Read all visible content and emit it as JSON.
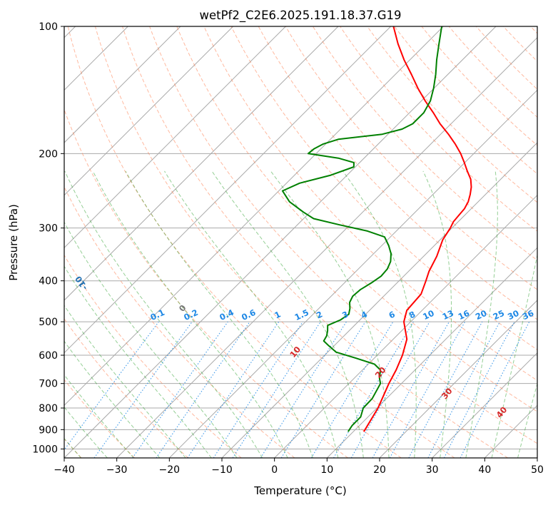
{
  "chart_data": {
    "type": "line",
    "diagram": "skew-t log-p",
    "title": "wetPf2_C2E6.2025.191.18.37.G19",
    "xlabel": "Temperature (°C)",
    "ylabel": "Pressure (hPa)",
    "xlim": [
      -40,
      50
    ],
    "ylim": [
      1050,
      100
    ],
    "y_scale": "log",
    "grid": true,
    "x_ticks": [
      -40,
      -30,
      -20,
      -10,
      0,
      10,
      20,
      30,
      40,
      50
    ],
    "x_tick_labels": [
      "−40",
      "−30",
      "−20",
      "−10",
      "0",
      "10",
      "20",
      "30",
      "40",
      "50"
    ],
    "y_ticks": [
      1000,
      900,
      800,
      700,
      600,
      500,
      400,
      300,
      200,
      100
    ],
    "y_tick_labels": [
      "1000",
      "900",
      "800",
      "700",
      "600",
      "500",
      "400",
      "300",
      "200",
      "100"
    ],
    "series": [
      {
        "color": "#ff0000",
        "pressure": [
          910,
          800,
          700,
          650,
          600,
          550,
          500,
          470,
          430,
          400,
          380,
          350,
          320,
          300,
          290,
          280,
          270,
          260,
          250,
          240,
          230,
          220,
          210,
          200,
          190,
          180,
          170,
          160,
          150,
          140,
          130,
          120,
          110,
          100
        ],
        "values": [
          12.0,
          10.2,
          7.6,
          6.4,
          4.8,
          2.6,
          -1.3,
          -2.9,
          -3.3,
          -4.9,
          -6.1,
          -7.5,
          -9.5,
          -10.3,
          -10.9,
          -11.1,
          -11.3,
          -11.9,
          -12.9,
          -14.1,
          -15.7,
          -17.9,
          -20.1,
          -22.5,
          -25.3,
          -28.5,
          -32.1,
          -35.5,
          -39.3,
          -43.1,
          -46.9,
          -51.1,
          -55.3,
          -59.5
        ]
      },
      {
        "color": "#008000",
        "pressure": [
          910,
          880,
          840,
          800,
          760,
          700,
          680,
          650,
          630,
          610,
          590,
          570,
          555,
          540,
          525,
          510,
          495,
          480,
          465,
          450,
          435,
          420,
          405,
          390,
          375,
          360,
          345,
          330,
          315,
          305,
          295,
          285,
          275,
          260,
          245,
          235,
          225,
          215,
          210,
          205,
          200,
          195,
          190,
          185,
          180,
          175,
          170,
          160,
          150,
          140,
          130,
          120,
          110,
          100
        ],
        "values": [
          9.0,
          8.6,
          8.6,
          7.4,
          7.3,
          6.0,
          4.8,
          3.4,
          1.2,
          -3.4,
          -8.4,
          -11.0,
          -12.9,
          -13.3,
          -14.1,
          -15.1,
          -13.7,
          -13.2,
          -14.1,
          -15.3,
          -15.9,
          -15.7,
          -14.9,
          -14.3,
          -14.5,
          -15.3,
          -16.7,
          -18.7,
          -21.1,
          -25.5,
          -31.9,
          -38.1,
          -41.3,
          -45.9,
          -49.3,
          -47.5,
          -43.1,
          -40.3,
          -41.1,
          -44.9,
          -51.5,
          -51.3,
          -50.5,
          -48.5,
          -41.1,
          -38.3,
          -37.3,
          -37.3,
          -38.3,
          -40.1,
          -42.3,
          -44.9,
          -47.5,
          -50.3
        ]
      }
    ],
    "annotations": {
      "dry_adiabats": [
        -100,
        -90,
        -80,
        -70,
        -60,
        -50,
        -40,
        -30,
        -20,
        -10
      ],
      "moist_adiabats": [
        0,
        10,
        20,
        30,
        40
      ],
      "mixing_ratios": [
        "0.1",
        "0.2",
        "0.4",
        "0.6",
        "1",
        "1.5",
        "2",
        "3",
        "4",
        "6",
        "8",
        "10",
        "13",
        "16",
        "20",
        "25",
        "30",
        "36"
      ]
    },
    "colors": {
      "temperature": "#ff0000",
      "dewpoint": "#008000",
      "dry_adiabat": "#ff7f50",
      "moist_adiabat": "#2ca02c",
      "mixing_ratio": "#1e88e5",
      "dry_label": "#1f6fb2",
      "moist_label": "#d62728",
      "zero_label": "#777777",
      "isotherm": "#a9a9a9"
    }
  }
}
